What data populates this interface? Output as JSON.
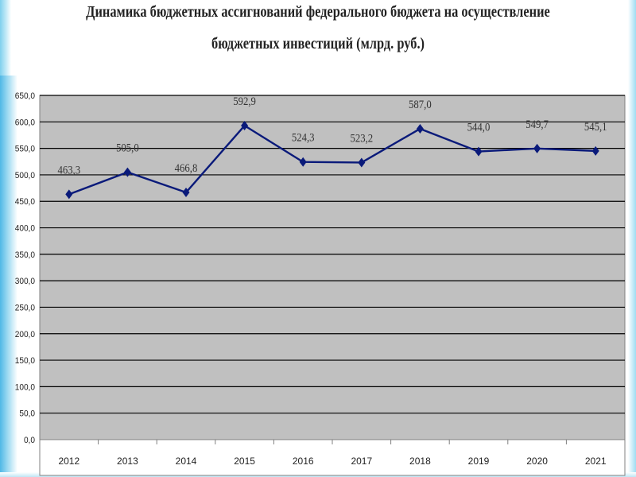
{
  "chart_data": {
    "type": "line",
    "title_line1": "Динамика бюджетных ассигнований федерального бюджета на осуществление",
    "title_line2": "бюджетных инвестиций (млрд. руб.)",
    "categories": [
      "2012",
      "2013",
      "2014",
      "2015",
      "2016",
      "2017",
      "2018",
      "2019",
      "2020",
      "2021"
    ],
    "series": [
      {
        "values": [
          463.3,
          505.0,
          466.8,
          592.9,
          524.3,
          523.2,
          587.0,
          544.0,
          549.7,
          545.1
        ],
        "labels": [
          "463,3",
          "505,0",
          "466,8",
          "592,9",
          "524,3",
          "523,2",
          "587,0",
          "544,0",
          "549,7",
          "545,1"
        ],
        "color": "#0a1a7a"
      }
    ],
    "ylim": [
      0,
      650
    ],
    "ytick_labels": [
      "0,0",
      "50,0",
      "100,0",
      "150,0",
      "200,0",
      "250,0",
      "300,0",
      "350,0",
      "400,0",
      "450,0",
      "500,0",
      "550,0",
      "600,0",
      "650,0"
    ],
    "grid": true,
    "plot_background": "#c0c0c0",
    "gridline_color": "#000000"
  }
}
